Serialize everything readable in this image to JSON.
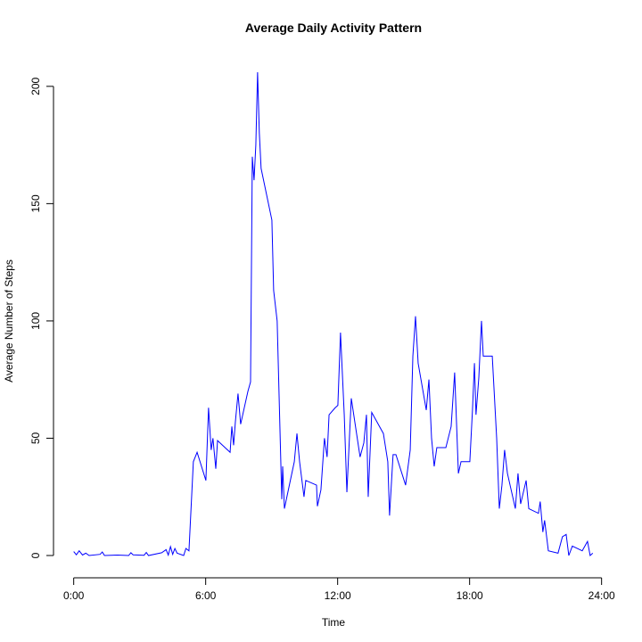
{
  "chart_data": {
    "type": "line",
    "title": "Average Daily Activity Pattern",
    "x_label": "Time",
    "y_label": "Average Number of Steps",
    "x": [
      0,
      0.12,
      0.25,
      0.4,
      0.55,
      0.7,
      1.2,
      1.3,
      1.4,
      2.0,
      2.5,
      2.6,
      2.7,
      3.2,
      3.3,
      3.4,
      4.0,
      4.2,
      4.3,
      4.4,
      4.5,
      4.6,
      4.7,
      5.0,
      5.1,
      5.24,
      5.44,
      5.61,
      6.01,
      6.13,
      6.25,
      6.33,
      6.46,
      6.54,
      7.11,
      7.19,
      7.27,
      7.35,
      7.47,
      7.59,
      7.92,
      8.04,
      8.12,
      8.2,
      8.28,
      8.36,
      8.44,
      8.52,
      9.01,
      9.09,
      9.25,
      9.46,
      9.5,
      9.58,
      10.03,
      10.15,
      10.27,
      10.47,
      10.55,
      11.04,
      11.08,
      11.24,
      11.4,
      11.52,
      11.61,
      11.89,
      12.01,
      12.13,
      12.3,
      12.42,
      12.62,
      13.02,
      13.19,
      13.31,
      13.39,
      13.55,
      14.08,
      14.28,
      14.36,
      14.52,
      14.65,
      15.09,
      15.3,
      15.42,
      15.54,
      15.66,
      16.03,
      16.15,
      16.27,
      16.39,
      16.51,
      16.92,
      17.16,
      17.32,
      17.49,
      17.61,
      18.01,
      18.13,
      18.22,
      18.29,
      18.42,
      18.54,
      18.62,
      19.03,
      19.23,
      19.35,
      19.47,
      19.59,
      19.72,
      20.08,
      20.2,
      20.32,
      20.57,
      20.69,
      21.13,
      21.21,
      21.33,
      21.41,
      21.58,
      22.02,
      22.22,
      22.39,
      22.51,
      22.67,
      23.12,
      23.36,
      23.48,
      23.6
    ],
    "series": [
      {
        "name": "steps",
        "color": "#0000ff",
        "values": [
          1.7,
          0.3,
          2,
          0.2,
          1,
          0,
          0.5,
          1.5,
          0,
          0.2,
          0,
          1.2,
          0.3,
          0.1,
          1.3,
          0,
          1.2,
          2.5,
          0.2,
          3.8,
          0.5,
          3,
          1,
          0,
          3,
          2,
          40,
          44,
          32,
          63,
          45,
          50,
          37,
          49,
          44,
          55,
          47,
          57,
          69,
          56,
          70,
          74,
          170,
          160,
          175,
          206,
          180,
          165,
          143,
          113,
          100,
          24,
          38,
          20,
          40,
          52,
          40,
          25,
          32,
          30,
          21,
          28,
          50,
          42,
          60,
          63,
          64,
          95,
          60,
          27,
          67,
          42,
          48,
          60,
          25,
          61,
          52,
          40,
          17,
          43,
          43,
          30,
          45,
          85,
          102,
          82,
          62,
          75,
          50,
          38,
          46,
          46,
          55,
          78,
          35,
          40,
          40,
          62,
          82,
          60,
          76,
          100,
          85,
          85,
          50,
          20,
          30,
          45,
          35,
          20,
          35,
          22,
          32,
          20,
          18,
          23,
          10,
          15,
          2,
          1,
          8,
          9,
          0,
          4,
          2,
          6,
          0,
          1
        ]
      }
    ],
    "xlim": [
      -1,
      24.5
    ],
    "ylim": [
      -9.5,
      214
    ],
    "xticks": [
      {
        "value": 0,
        "label": "0:00"
      },
      {
        "value": 6,
        "label": "6:00"
      },
      {
        "value": 12,
        "label": "12:00"
      },
      {
        "value": 18,
        "label": "18:00"
      },
      {
        "value": 24,
        "label": "24:00"
      }
    ],
    "yticks": [
      0,
      50,
      100,
      150,
      200
    ]
  }
}
